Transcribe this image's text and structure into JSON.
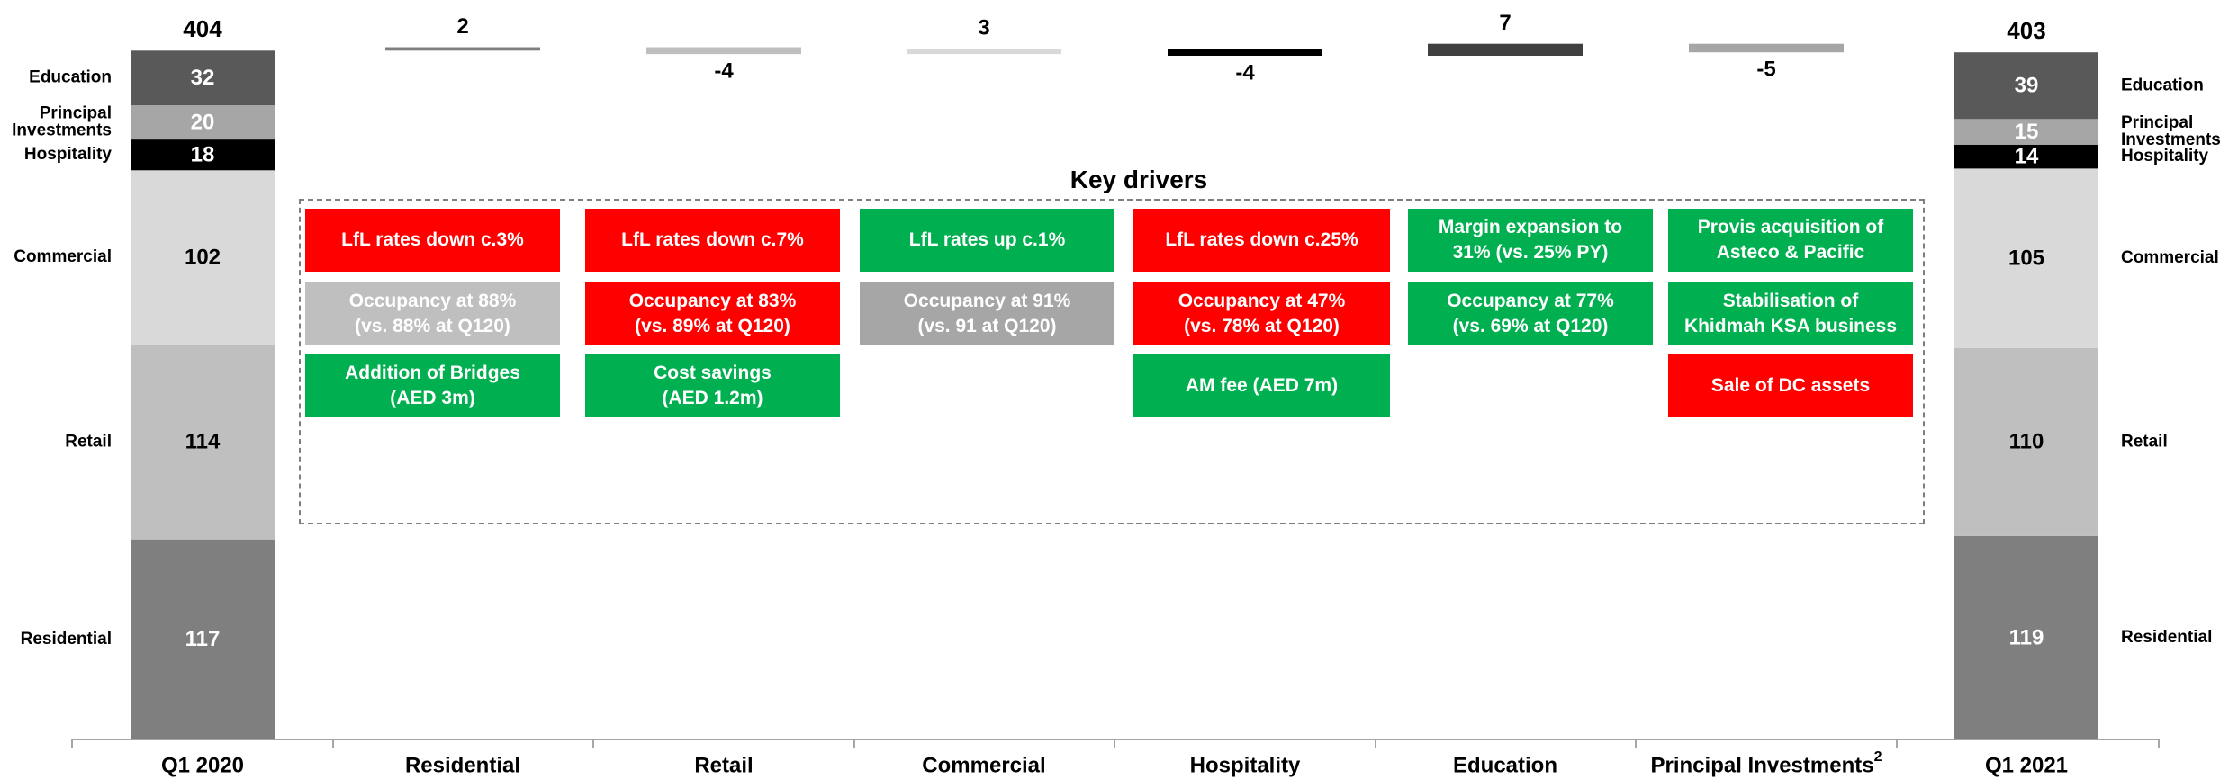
{
  "chart_data": {
    "type": "waterfall",
    "categories": [
      "Q1 2020",
      "Residential",
      "Retail",
      "Commercial",
      "Hospitality",
      "Education",
      "Principal Investments"
    ],
    "end_category": "Q1 2021",
    "category_superscripts": {
      "Principal Investments": "2"
    },
    "start": {
      "label": "Q1 2020",
      "total": 404,
      "segments": [
        {
          "name": "Residential",
          "value": 117,
          "color": "#7f7f7f"
        },
        {
          "name": "Retail",
          "value": 114,
          "color": "#bfbfbf"
        },
        {
          "name": "Commercial",
          "value": 102,
          "color": "#d9d9d9"
        },
        {
          "name": "Hospitality",
          "value": 18,
          "color": "#000000"
        },
        {
          "name": "Principal Investments",
          "value": 20,
          "color": "#a6a6a6"
        },
        {
          "name": "Education",
          "value": 32,
          "color": "#595959"
        }
      ]
    },
    "changes": [
      {
        "label": "Residential",
        "value": 2,
        "color": "#7f7f7f"
      },
      {
        "label": "Retail",
        "value": -4,
        "color": "#bfbfbf"
      },
      {
        "label": "Commercial",
        "value": 3,
        "color": "#d9d9d9"
      },
      {
        "label": "Hospitality",
        "value": -4,
        "color": "#000000"
      },
      {
        "label": "Education",
        "value": 7,
        "color": "#404040"
      },
      {
        "label": "Principal Investments",
        "value": -5,
        "color": "#a6a6a6"
      }
    ],
    "end": {
      "label": "Q1 2021",
      "total": 403,
      "segments": [
        {
          "name": "Residential",
          "value": 119,
          "color": "#7f7f7f"
        },
        {
          "name": "Retail",
          "value": 110,
          "color": "#bfbfbf"
        },
        {
          "name": "Commercial",
          "value": 105,
          "color": "#d9d9d9"
        },
        {
          "name": "Hospitality",
          "value": 14,
          "color": "#000000"
        },
        {
          "name": "Principal Investments",
          "value": 15,
          "color": "#a6a6a6"
        },
        {
          "name": "Education",
          "value": 39,
          "color": "#595959"
        }
      ]
    },
    "segment_labels": {
      "Residential": "Residential",
      "Retail": "Retail",
      "Commercial": "Commercial",
      "Hospitality": "Hospitality",
      "Principal Investments": "Principal\nInvestments",
      "Education": "Education"
    }
  },
  "key_drivers": {
    "title": "Key drivers",
    "columns": [
      {
        "category": "Residential",
        "items": [
          {
            "text": "LfL rates down c.3%",
            "status": "red"
          },
          {
            "text": "Occupancy at 88%\n(vs. 88% at Q120)",
            "status": "lightgrey"
          },
          {
            "text": "Addition of Bridges\n(AED 3m)",
            "status": "green"
          }
        ]
      },
      {
        "category": "Retail",
        "items": [
          {
            "text": "LfL rates down c.7%",
            "status": "red"
          },
          {
            "text": "Occupancy at 83%\n(vs. 89% at Q120)",
            "status": "red"
          },
          {
            "text": "Cost savings\n(AED 1.2m)",
            "status": "green"
          }
        ]
      },
      {
        "category": "Commercial",
        "items": [
          {
            "text": "LfL rates up c.1%",
            "status": "green"
          },
          {
            "text": "Occupancy at 91%\n(vs. 91 at Q120)",
            "status": "grey"
          }
        ]
      },
      {
        "category": "Hospitality",
        "items": [
          {
            "text": "LfL rates down c.25%",
            "status": "red"
          },
          {
            "text": "Occupancy at 47%\n(vs. 78% at Q120)",
            "status": "red"
          },
          {
            "text": "AM fee (AED 7m)",
            "status": "green"
          }
        ]
      },
      {
        "category": "Education",
        "items": [
          {
            "text": "Margin expansion to\n31% (vs. 25% PY)",
            "status": "green"
          },
          {
            "text": "Occupancy at 77%\n(vs. 69% at Q120)",
            "status": "green"
          }
        ]
      },
      {
        "category": "Principal Investments",
        "items": [
          {
            "text": "Provis acquisition of\nAsteco & Pacific",
            "status": "green"
          },
          {
            "text": "Stabilisation of\nKhidmah KSA business",
            "status": "green"
          },
          {
            "text": "Sale of DC assets",
            "status": "red"
          }
        ]
      }
    ]
  }
}
